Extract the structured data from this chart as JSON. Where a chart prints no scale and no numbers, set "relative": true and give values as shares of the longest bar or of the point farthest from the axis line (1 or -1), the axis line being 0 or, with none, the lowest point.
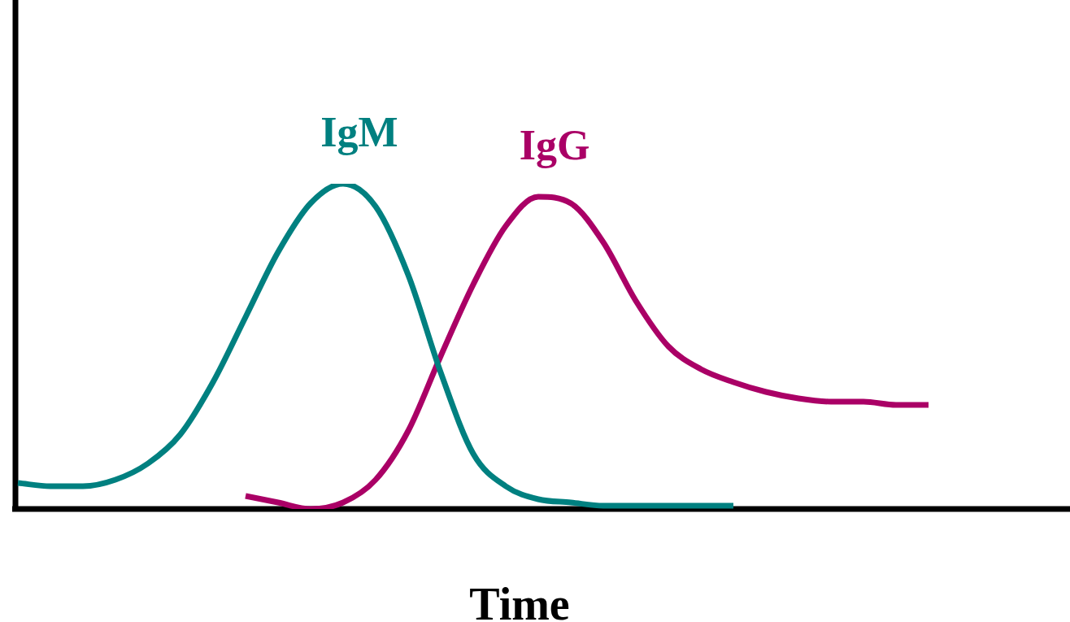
{
  "chart_data": {
    "type": "line",
    "relative": true,
    "xlabel": "Time",
    "legend": false,
    "marker": "none",
    "line_style": "solid",
    "categories": [
      null,
      null,
      null,
      null,
      null,
      null,
      null,
      null,
      null,
      null,
      null,
      null,
      null,
      null,
      null,
      null,
      null,
      null,
      null,
      null,
      null,
      null,
      null,
      null,
      null,
      null,
      null,
      null,
      null,
      null,
      null,
      null,
      null
    ],
    "series": [
      {
        "name": "IgM",
        "color": "#008080",
        "values": [
          0.08,
          0.07,
          0.07,
          0.09,
          0.14,
          0.23,
          0.39,
          0.59,
          0.79,
          0.94,
          1.0,
          0.93,
          0.72,
          0.42,
          0.17,
          0.07,
          0.03,
          0.02,
          0.01,
          0.01,
          0.01,
          0.01,
          0.01,
          null,
          null,
          null,
          null,
          null,
          null,
          null,
          null,
          null,
          null
        ]
      },
      {
        "name": "IgG",
        "color": "#aa0066",
        "values": [
          null,
          null,
          null,
          null,
          null,
          null,
          null,
          0.04,
          0.02,
          0,
          0.02,
          0.09,
          0.24,
          0.47,
          0.69,
          0.87,
          0.96,
          0.94,
          0.82,
          0.64,
          0.5,
          0.43,
          0.39,
          0.36,
          0.34,
          0.33,
          0.33,
          0.32,
          0.32,
          null,
          null,
          null,
          null
        ]
      }
    ]
  }
}
